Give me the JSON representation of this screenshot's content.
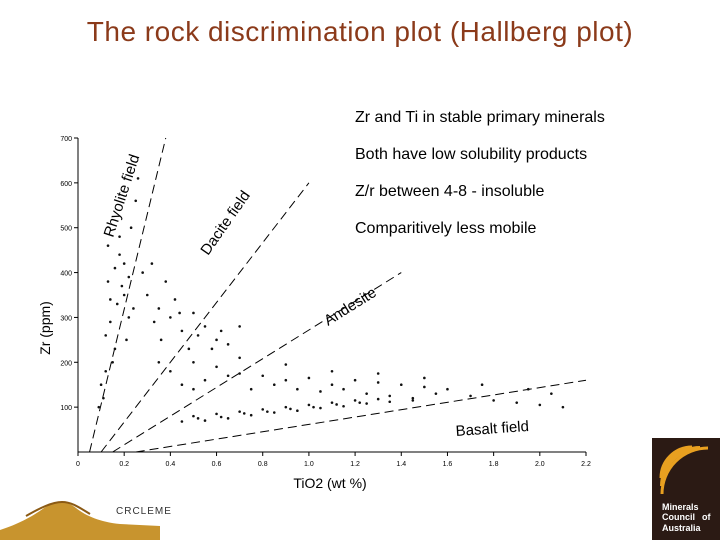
{
  "title": "The rock discrimination plot (Hallberg plot)",
  "bullets": [
    "Zr and Ti in stable primary minerals",
    "Both have low solubility products",
    "Z/r between 4-8 - insoluble",
    "Comparitively less mobile"
  ],
  "chart_data": {
    "type": "scatter",
    "xlabel": "TiO2 (wt %)",
    "ylabel": "Zr (ppm)",
    "xlim": [
      0,
      2.2
    ],
    "ylim": [
      0,
      700
    ],
    "x_ticks": [
      "0",
      "0.2",
      "0.4",
      "0.6",
      "0.8",
      "1.0",
      "1.2",
      "1.4",
      "1.6",
      "1.8",
      "2.0",
      "2.2"
    ],
    "y_ticks": [
      "100",
      "200",
      "300",
      "400",
      "500",
      "600",
      "700"
    ],
    "grid": false,
    "field_labels": [
      "Rhyolite field",
      "Dacite field",
      "Andesite",
      "Basalt field"
    ],
    "boundaries": [
      {
        "x": [
          0.05,
          0.38
        ],
        "y": [
          0,
          700
        ]
      },
      {
        "x": [
          0.1,
          1.0
        ],
        "y": [
          0,
          600
        ]
      },
      {
        "x": [
          0.15,
          1.4
        ],
        "y": [
          0,
          400
        ]
      },
      {
        "x": [
          0.25,
          2.2
        ],
        "y": [
          0,
          160
        ]
      }
    ],
    "series": [
      {
        "points": [
          [
            0.1,
            150
          ],
          [
            0.12,
            260
          ],
          [
            0.14,
            340
          ],
          [
            0.16,
            410
          ],
          [
            0.18,
            480
          ],
          [
            0.2,
            420
          ],
          [
            0.22,
            300
          ],
          [
            0.15,
            200
          ],
          [
            0.11,
            120
          ],
          [
            0.13,
            380
          ],
          [
            0.17,
            330
          ],
          [
            0.19,
            370
          ],
          [
            0.21,
            250
          ],
          [
            0.23,
            500
          ],
          [
            0.25,
            560
          ],
          [
            0.26,
            610
          ],
          [
            0.09,
            100
          ],
          [
            0.14,
            290
          ],
          [
            0.18,
            440
          ],
          [
            0.2,
            350
          ],
          [
            0.16,
            230
          ],
          [
            0.12,
            180
          ],
          [
            0.22,
            390
          ],
          [
            0.24,
            320
          ],
          [
            0.13,
            460
          ]
        ]
      },
      {
        "points": [
          [
            0.3,
            350
          ],
          [
            0.35,
            320
          ],
          [
            0.4,
            300
          ],
          [
            0.45,
            270
          ],
          [
            0.5,
            310
          ],
          [
            0.55,
            280
          ],
          [
            0.6,
            250
          ],
          [
            0.65,
            240
          ],
          [
            0.38,
            380
          ],
          [
            0.42,
            340
          ],
          [
            0.48,
            230
          ],
          [
            0.33,
            290
          ],
          [
            0.28,
            400
          ],
          [
            0.32,
            420
          ],
          [
            0.36,
            250
          ],
          [
            0.52,
            260
          ],
          [
            0.58,
            230
          ],
          [
            0.44,
            310
          ],
          [
            0.62,
            270
          ],
          [
            0.7,
            280
          ]
        ]
      },
      {
        "points": [
          [
            0.4,
            180
          ],
          [
            0.5,
            200
          ],
          [
            0.6,
            190
          ],
          [
            0.7,
            175
          ],
          [
            0.8,
            170
          ],
          [
            0.9,
            160
          ],
          [
            1.0,
            165
          ],
          [
            1.1,
            150
          ],
          [
            1.2,
            160
          ],
          [
            1.3,
            155
          ],
          [
            1.4,
            150
          ],
          [
            1.5,
            145
          ],
          [
            1.6,
            140
          ],
          [
            0.45,
            150
          ],
          [
            0.55,
            160
          ],
          [
            0.65,
            170
          ],
          [
            0.75,
            140
          ],
          [
            0.85,
            150
          ],
          [
            0.95,
            140
          ],
          [
            1.05,
            135
          ],
          [
            1.15,
            140
          ],
          [
            1.25,
            130
          ],
          [
            1.35,
            125
          ],
          [
            1.45,
            120
          ],
          [
            1.55,
            130
          ],
          [
            1.7,
            125
          ],
          [
            1.8,
            115
          ],
          [
            1.9,
            110
          ],
          [
            2.0,
            105
          ],
          [
            2.1,
            100
          ],
          [
            0.35,
            200
          ],
          [
            0.5,
            140
          ],
          [
            0.7,
            210
          ],
          [
            0.9,
            195
          ],
          [
            1.1,
            180
          ],
          [
            1.3,
            175
          ],
          [
            1.5,
            165
          ],
          [
            1.75,
            150
          ],
          [
            1.95,
            140
          ],
          [
            2.05,
            130
          ]
        ]
      },
      {
        "points": [
          [
            0.5,
            80
          ],
          [
            0.6,
            85
          ],
          [
            0.7,
            90
          ],
          [
            0.8,
            95
          ],
          [
            0.9,
            100
          ],
          [
            1.0,
            105
          ],
          [
            1.1,
            110
          ],
          [
            1.2,
            115
          ],
          [
            1.3,
            118
          ],
          [
            0.55,
            70
          ],
          [
            0.65,
            75
          ],
          [
            0.75,
            82
          ],
          [
            0.85,
            88
          ],
          [
            0.95,
            92
          ],
          [
            1.05,
            98
          ],
          [
            1.15,
            102
          ],
          [
            1.25,
            108
          ],
          [
            1.35,
            112
          ],
          [
            1.45,
            115
          ],
          [
            0.45,
            68
          ],
          [
            0.52,
            75
          ],
          [
            0.62,
            78
          ],
          [
            0.72,
            86
          ],
          [
            0.82,
            90
          ],
          [
            0.92,
            96
          ],
          [
            1.02,
            100
          ],
          [
            1.12,
            106
          ],
          [
            1.22,
            110
          ]
        ]
      }
    ]
  },
  "logos": {
    "crc_text": "CRCLEME",
    "mca_lines": [
      "Minerals",
      "Council",
      "of",
      "Australia"
    ]
  }
}
